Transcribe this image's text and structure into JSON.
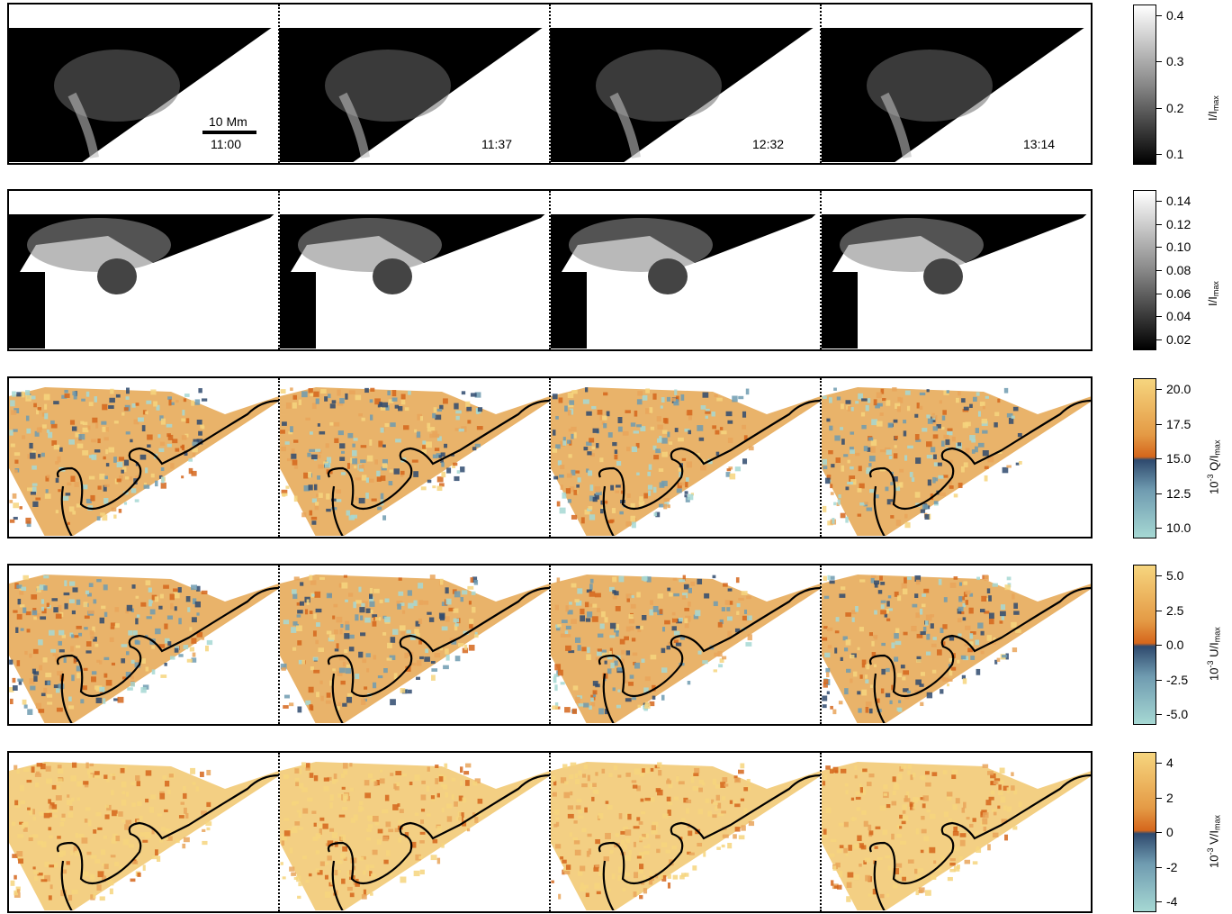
{
  "times": [
    "11:00",
    "11:37",
    "12:32",
    "13:14"
  ],
  "scale_bar_label": "10 Mm",
  "rows": [
    {
      "id": "intensity-wide",
      "kind": "gray",
      "label": "I/I",
      "label_sub": "max",
      "label_sup": "",
      "ticks": [
        "0.4",
        "0.3",
        "0.2",
        "0.1"
      ]
    },
    {
      "id": "intensity-narrow",
      "kind": "gray",
      "label": "I/I",
      "label_sub": "max",
      "label_sup": "",
      "ticks": [
        "0.14",
        "0.12",
        "0.10",
        "0.08",
        "0.06",
        "0.04",
        "0.02"
      ]
    },
    {
      "id": "stokes-q",
      "kind": "color",
      "label": "Q/I",
      "label_sub": "max",
      "label_sup": "-3",
      "label_prefix": "10",
      "ticks": [
        "20.0",
        "17.5",
        "15.0",
        "12.5",
        "10.0"
      ]
    },
    {
      "id": "stokes-u",
      "kind": "color",
      "label": "U/I",
      "label_sub": "max",
      "label_sup": "-3",
      "label_prefix": "10",
      "ticks": [
        "5.0",
        "2.5",
        "0.0",
        "-2.5",
        "-5.0"
      ]
    },
    {
      "id": "stokes-v",
      "kind": "color",
      "label": "V/I",
      "label_sub": "max",
      "label_sup": "-3",
      "label_prefix": "10",
      "ticks": [
        "4",
        "2",
        "0",
        "-2",
        "-4"
      ]
    }
  ],
  "colors": {
    "frame": "#000000",
    "gray_high": "#ffffff",
    "gray_low": "#000000",
    "cmap_top": "#f6d57e",
    "cmap_mid_orange": "#d5661c",
    "cmap_mid_blue": "#2f4a6e",
    "cmap_bottom": "#9fd4cf"
  }
}
